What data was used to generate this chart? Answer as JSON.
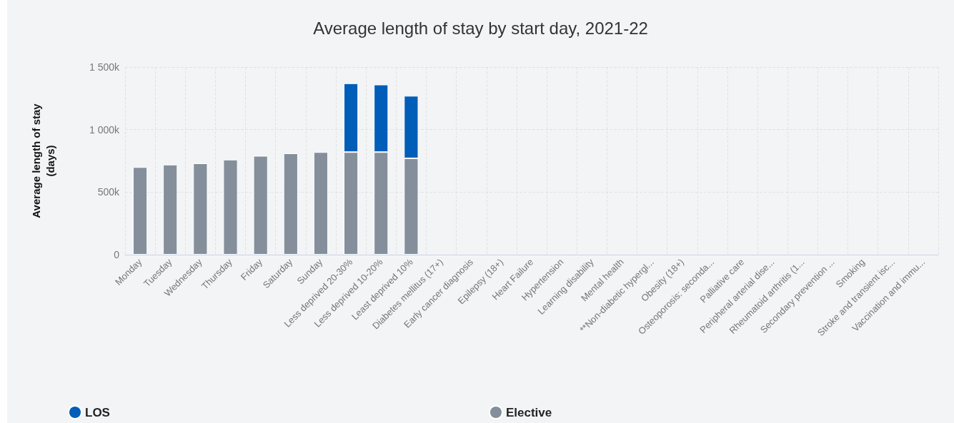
{
  "chart_data": {
    "type": "bar",
    "title": "Average length of stay by start day, 2021-22",
    "ylabel": "Average length of stay\n(days)",
    "categories": [
      "Monday",
      "Tuesday",
      "Wednesday",
      "Thursday",
      "Friday",
      "Saturday",
      "Sunday",
      "Less deprived 20-30%",
      "Less deprived 10-20%",
      "Least deprived 10%",
      "Diabetes mellitus (17+)",
      "Early cancer diagnosis",
      "Epilepsy (18+)",
      "Heart Failure",
      "Hypertension",
      "Learning disability",
      "Mental health",
      "**Non-diabetic hypergl...",
      "Obesity (18+)",
      "Osteoporosis: seconda...",
      "Palliative care",
      "Peripheral arterial dise...",
      "Rheumatoid arthritis (1...",
      "Secondary prevention ...",
      "Smoking",
      "Stroke and transient isc...",
      "Vaccination and immu..."
    ],
    "series": [
      {
        "name": "Elective",
        "color": "#848f9b",
        "values": [
          700,
          720,
          730,
          760,
          790,
          810,
          820,
          820,
          820,
          770,
          null,
          null,
          null,
          null,
          null,
          null,
          null,
          null,
          null,
          null,
          null,
          null,
          null,
          null,
          null,
          null,
          null
        ]
      },
      {
        "name": "LOS",
        "color": "#005eb8",
        "values": [
          null,
          null,
          null,
          null,
          null,
          null,
          null,
          550,
          540,
          500,
          null,
          null,
          null,
          null,
          null,
          null,
          null,
          null,
          null,
          null,
          null,
          null,
          null,
          null,
          null,
          null,
          null
        ]
      }
    ],
    "stacked": true,
    "ylim": [
      0,
      1500
    ],
    "yticks": [
      {
        "value": 0,
        "label": "0"
      },
      {
        "value": 500,
        "label": "500k"
      },
      {
        "value": 1000,
        "label": "1 000k"
      },
      {
        "value": 1500,
        "label": "1 500k"
      }
    ],
    "grid": true,
    "legend": "bottom"
  }
}
